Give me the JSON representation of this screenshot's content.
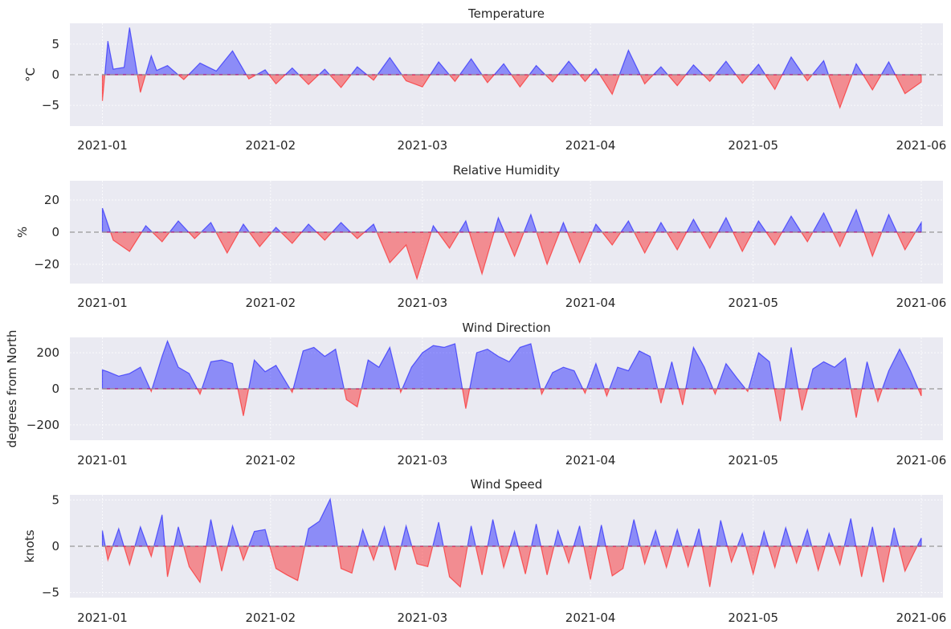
{
  "figure": {
    "background": "#ffffff",
    "axes_background": "#eaeaf2",
    "grid_color": "#ffffff"
  },
  "colors": {
    "positive": "#0000ff",
    "negative": "#ff0000",
    "zero_line": "#999999",
    "text": "#262626"
  },
  "x_axis": {
    "start": "2020-12-26",
    "end": "2021-06-05",
    "ticks": [
      "2021-01",
      "2021-02",
      "2021-03",
      "2021-04",
      "2021-05",
      "2021-06"
    ],
    "tick_dates": [
      "2021-01-01",
      "2021-02-01",
      "2021-03-01",
      "2021-04-01",
      "2021-05-01",
      "2021-06-01"
    ]
  },
  "chart_data": [
    {
      "type": "area",
      "title": "Temperature",
      "ylabel": "°C",
      "ylim": [
        -8.4,
        8.4
      ],
      "yticks": [
        5,
        0,
        -5
      ],
      "ytick_labels": [
        "5",
        "0",
        "−5"
      ],
      "grid": true,
      "series": [
        {
          "x": [
            "2021-01-01",
            "2021-01-02",
            "2021-01-03",
            "2021-01-05",
            "2021-01-06",
            "2021-01-08",
            "2021-01-10",
            "2021-01-11",
            "2021-01-13",
            "2021-01-16",
            "2021-01-19",
            "2021-01-22",
            "2021-01-25",
            "2021-01-28",
            "2021-01-31",
            "2021-02-02",
            "2021-02-05",
            "2021-02-08",
            "2021-02-11",
            "2021-02-14",
            "2021-02-17",
            "2021-02-20",
            "2021-02-23",
            "2021-02-26",
            "2021-03-01",
            "2021-03-04",
            "2021-03-07",
            "2021-03-10",
            "2021-03-13",
            "2021-03-16",
            "2021-03-19",
            "2021-03-22",
            "2021-03-25",
            "2021-03-28",
            "2021-03-31",
            "2021-04-02",
            "2021-04-05",
            "2021-04-08",
            "2021-04-11",
            "2021-04-14",
            "2021-04-17",
            "2021-04-20",
            "2021-04-23",
            "2021-04-26",
            "2021-04-29",
            "2021-05-02",
            "2021-05-05",
            "2021-05-08",
            "2021-05-11",
            "2021-05-14",
            "2021-05-17",
            "2021-05-20",
            "2021-05-23",
            "2021-05-26",
            "2021-05-29",
            "2021-06-01"
          ],
          "y": [
            -4.3,
            5.5,
            0.9,
            1.2,
            7.7,
            -2.9,
            3.1,
            0.7,
            1.5,
            -0.8,
            1.9,
            0.6,
            3.9,
            -0.7,
            0.8,
            -1.5,
            1.1,
            -1.6,
            0.9,
            -2.1,
            1.3,
            -0.9,
            2.8,
            -1.0,
            -2.0,
            2.1,
            -1.1,
            2.6,
            -1.3,
            1.8,
            -2.0,
            1.5,
            -1.2,
            2.2,
            -1.1,
            1.0,
            -3.2,
            4.0,
            -1.5,
            1.3,
            -1.8,
            1.6,
            -1.1,
            2.2,
            -1.4,
            1.7,
            -2.4,
            2.9,
            -1.0,
            2.3,
            -5.4,
            1.8,
            -2.5,
            2.1,
            -3.1,
            -1.2
          ]
        }
      ]
    },
    {
      "type": "area",
      "title": "Relative Humidity",
      "ylabel": "%",
      "ylim": [
        -32,
        32
      ],
      "yticks": [
        20,
        0,
        -20
      ],
      "ytick_labels": [
        "20",
        "0",
        "−20"
      ],
      "grid": true,
      "series": [
        {
          "x": [
            "2021-01-01",
            "2021-01-03",
            "2021-01-06",
            "2021-01-09",
            "2021-01-12",
            "2021-01-15",
            "2021-01-18",
            "2021-01-21",
            "2021-01-24",
            "2021-01-27",
            "2021-01-30",
            "2021-02-02",
            "2021-02-05",
            "2021-02-08",
            "2021-02-11",
            "2021-02-14",
            "2021-02-17",
            "2021-02-20",
            "2021-02-23",
            "2021-02-26",
            "2021-02-28",
            "2021-03-03",
            "2021-03-06",
            "2021-03-09",
            "2021-03-12",
            "2021-03-15",
            "2021-03-18",
            "2021-03-21",
            "2021-03-24",
            "2021-03-27",
            "2021-03-30",
            "2021-04-02",
            "2021-04-05",
            "2021-04-08",
            "2021-04-11",
            "2021-04-14",
            "2021-04-17",
            "2021-04-20",
            "2021-04-23",
            "2021-04-26",
            "2021-04-29",
            "2021-05-02",
            "2021-05-05",
            "2021-05-08",
            "2021-05-11",
            "2021-05-14",
            "2021-05-17",
            "2021-05-20",
            "2021-05-23",
            "2021-05-26",
            "2021-05-29",
            "2021-06-01"
          ],
          "y": [
            15,
            -5,
            -12,
            4,
            -6,
            7,
            -4,
            6,
            -13,
            5,
            -9,
            3,
            -7,
            5,
            -5,
            6,
            -4,
            5,
            -19,
            -8,
            -29,
            4,
            -10,
            7,
            -26,
            9,
            -15,
            11,
            -20,
            6,
            -19,
            5,
            -8,
            7,
            -13,
            6,
            -11,
            8,
            -10,
            9,
            -12,
            7,
            -8,
            10,
            -6,
            12,
            -9,
            14,
            -15,
            11,
            -11,
            6
          ]
        }
      ]
    },
    {
      "type": "area",
      "title": "Wind Direction",
      "ylabel": "degrees from North",
      "ylim": [
        -285,
        285
      ],
      "yticks": [
        200,
        0,
        -200
      ],
      "ytick_labels": [
        "200",
        "0",
        "−200"
      ],
      "grid": true,
      "series": [
        {
          "x": [
            "2021-01-01",
            "2021-01-02",
            "2021-01-04",
            "2021-01-06",
            "2021-01-08",
            "2021-01-10",
            "2021-01-12",
            "2021-01-13",
            "2021-01-15",
            "2021-01-17",
            "2021-01-19",
            "2021-01-21",
            "2021-01-23",
            "2021-01-25",
            "2021-01-27",
            "2021-01-29",
            "2021-01-31",
            "2021-02-02",
            "2021-02-05",
            "2021-02-07",
            "2021-02-09",
            "2021-02-11",
            "2021-02-13",
            "2021-02-15",
            "2021-02-17",
            "2021-02-19",
            "2021-02-21",
            "2021-02-23",
            "2021-02-25",
            "2021-02-27",
            "2021-03-01",
            "2021-03-03",
            "2021-03-05",
            "2021-03-07",
            "2021-03-09",
            "2021-03-11",
            "2021-03-13",
            "2021-03-15",
            "2021-03-17",
            "2021-03-19",
            "2021-03-21",
            "2021-03-23",
            "2021-03-25",
            "2021-03-27",
            "2021-03-29",
            "2021-03-31",
            "2021-04-02",
            "2021-04-04",
            "2021-04-06",
            "2021-04-08",
            "2021-04-10",
            "2021-04-12",
            "2021-04-14",
            "2021-04-16",
            "2021-04-18",
            "2021-04-20",
            "2021-04-22",
            "2021-04-24",
            "2021-04-26",
            "2021-04-28",
            "2021-04-30",
            "2021-05-02",
            "2021-05-04",
            "2021-05-06",
            "2021-05-08",
            "2021-05-10",
            "2021-05-12",
            "2021-05-14",
            "2021-05-16",
            "2021-05-18",
            "2021-05-20",
            "2021-05-22",
            "2021-05-24",
            "2021-05-26",
            "2021-05-28",
            "2021-05-30",
            "2021-06-01"
          ],
          "y": [
            105,
            95,
            70,
            85,
            120,
            -15,
            180,
            265,
            120,
            85,
            -30,
            150,
            160,
            140,
            -150,
            160,
            95,
            130,
            -20,
            210,
            230,
            180,
            220,
            -60,
            -100,
            160,
            120,
            230,
            -20,
            120,
            200,
            240,
            230,
            250,
            -110,
            200,
            220,
            180,
            150,
            230,
            250,
            -30,
            90,
            120,
            100,
            -25,
            140,
            -40,
            120,
            100,
            210,
            180,
            -80,
            150,
            -90,
            230,
            120,
            -30,
            140,
            60,
            -15,
            200,
            150,
            -180,
            230,
            -120,
            110,
            150,
            120,
            170,
            -160,
            150,
            -70,
            100,
            220,
            100,
            -40
          ]
        }
      ]
    },
    {
      "type": "area",
      "title": "Wind Speed",
      "ylabel": "knots",
      "ylim": [
        -5.55,
        5.55
      ],
      "yticks": [
        5,
        0,
        -5
      ],
      "ytick_labels": [
        "5",
        "0",
        "−5"
      ],
      "grid": true,
      "series": [
        {
          "x": [
            "2021-01-01",
            "2021-01-02",
            "2021-01-04",
            "2021-01-06",
            "2021-01-08",
            "2021-01-10",
            "2021-01-12",
            "2021-01-13",
            "2021-01-15",
            "2021-01-17",
            "2021-01-19",
            "2021-01-21",
            "2021-01-23",
            "2021-01-25",
            "2021-01-27",
            "2021-01-29",
            "2021-01-31",
            "2021-02-02",
            "2021-02-04",
            "2021-02-06",
            "2021-02-08",
            "2021-02-10",
            "2021-02-12",
            "2021-02-14",
            "2021-02-16",
            "2021-02-18",
            "2021-02-20",
            "2021-02-22",
            "2021-02-24",
            "2021-02-26",
            "2021-02-28",
            "2021-03-02",
            "2021-03-04",
            "2021-03-06",
            "2021-03-08",
            "2021-03-10",
            "2021-03-12",
            "2021-03-14",
            "2021-03-16",
            "2021-03-18",
            "2021-03-20",
            "2021-03-22",
            "2021-03-24",
            "2021-03-26",
            "2021-03-28",
            "2021-03-30",
            "2021-04-01",
            "2021-04-03",
            "2021-04-05",
            "2021-04-07",
            "2021-04-09",
            "2021-04-11",
            "2021-04-13",
            "2021-04-15",
            "2021-04-17",
            "2021-04-19",
            "2021-04-21",
            "2021-04-23",
            "2021-04-25",
            "2021-04-27",
            "2021-04-29",
            "2021-05-01",
            "2021-05-03",
            "2021-05-05",
            "2021-05-07",
            "2021-05-09",
            "2021-05-11",
            "2021-05-13",
            "2021-05-15",
            "2021-05-17",
            "2021-05-19",
            "2021-05-21",
            "2021-05-23",
            "2021-05-25",
            "2021-05-27",
            "2021-05-29",
            "2021-06-01"
          ],
          "y": [
            1.7,
            -1.5,
            1.9,
            -2.0,
            2.1,
            -1.1,
            3.4,
            -3.3,
            2.1,
            -2.2,
            -3.9,
            2.9,
            -2.7,
            2.2,
            -1.5,
            1.6,
            1.8,
            -2.4,
            -3.1,
            -3.7,
            1.9,
            2.7,
            5.1,
            -2.4,
            -2.9,
            1.8,
            -1.5,
            2.1,
            -2.6,
            2.2,
            -1.9,
            -2.2,
            2.6,
            -3.3,
            -4.4,
            2.2,
            -3.1,
            2.9,
            -2.3,
            1.6,
            -3.0,
            2.4,
            -3.1,
            1.7,
            -1.8,
            2.2,
            -3.6,
            2.3,
            -3.2,
            -2.4,
            2.9,
            -1.9,
            1.7,
            -2.3,
            1.8,
            -2.2,
            1.9,
            -4.4,
            2.8,
            -1.7,
            1.4,
            -3.0,
            1.6,
            -2.3,
            2.0,
            -1.8,
            1.8,
            -2.6,
            1.4,
            -2.0,
            3.0,
            -3.3,
            2.1,
            -3.9,
            2.0,
            -2.7,
            0.9
          ]
        }
      ]
    }
  ]
}
